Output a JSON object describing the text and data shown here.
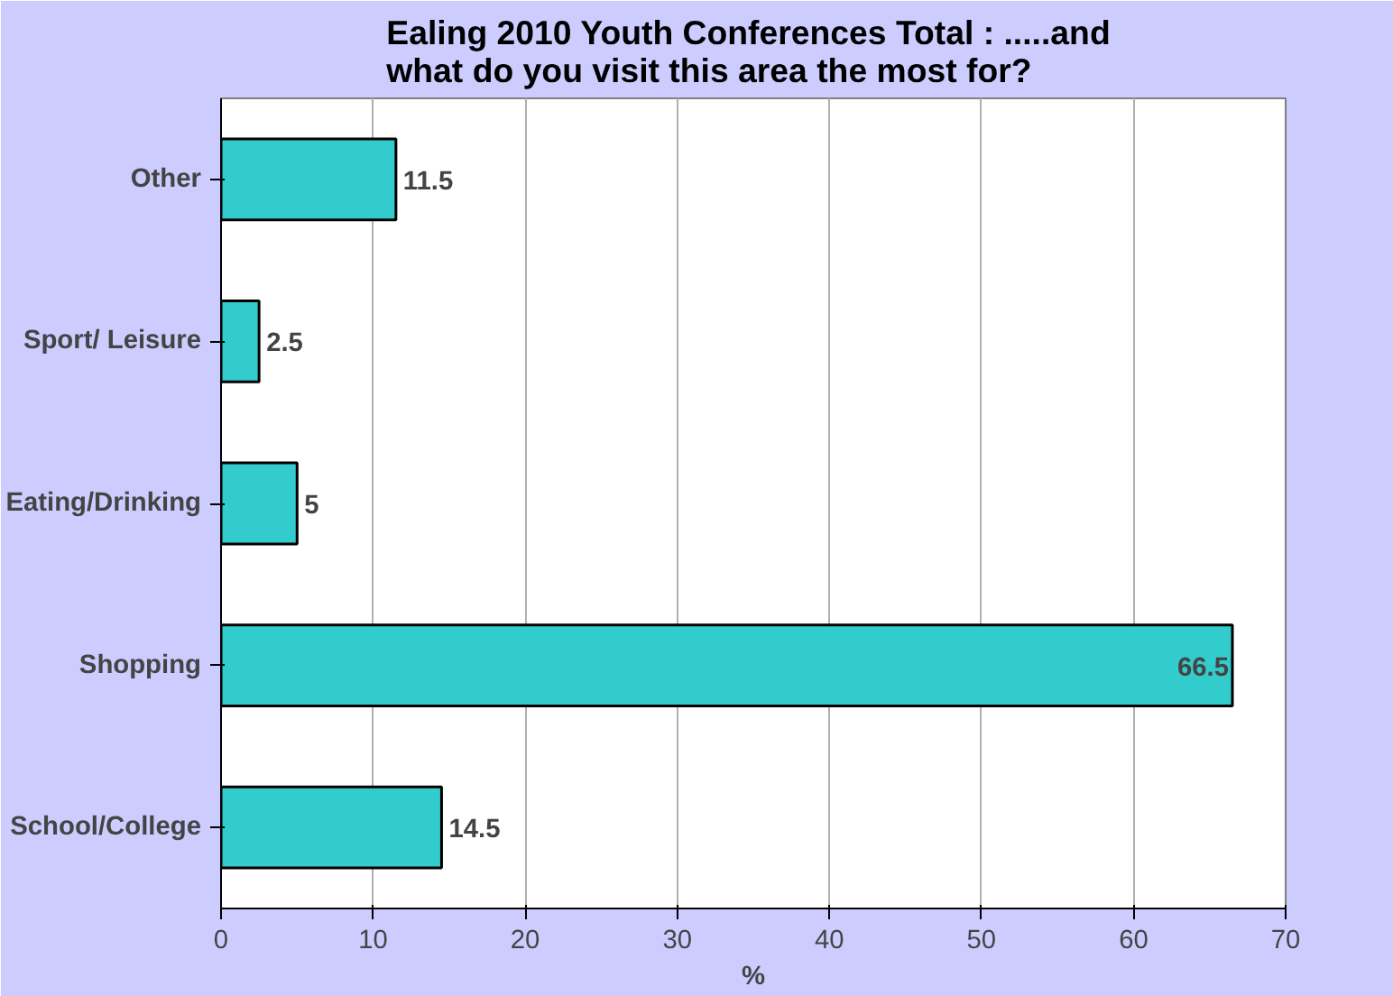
{
  "chart_data": {
    "type": "bar",
    "orientation": "horizontal",
    "title": "Ealing  2010 Youth Conferences Total : .....and what do you visit this area the most for?",
    "xlabel": "%",
    "categories": [
      "Other",
      "Sport/ Leisure",
      "Eating/Drinking",
      "Shopping",
      "School/College"
    ],
    "values": [
      11.5,
      2.5,
      5,
      66.5,
      14.5
    ],
    "color": "#33cccc",
    "xlim": [
      0,
      70
    ],
    "xticks": [
      0,
      10,
      20,
      30,
      40,
      50,
      60,
      70
    ],
    "grid": "x",
    "data_labels": true
  }
}
